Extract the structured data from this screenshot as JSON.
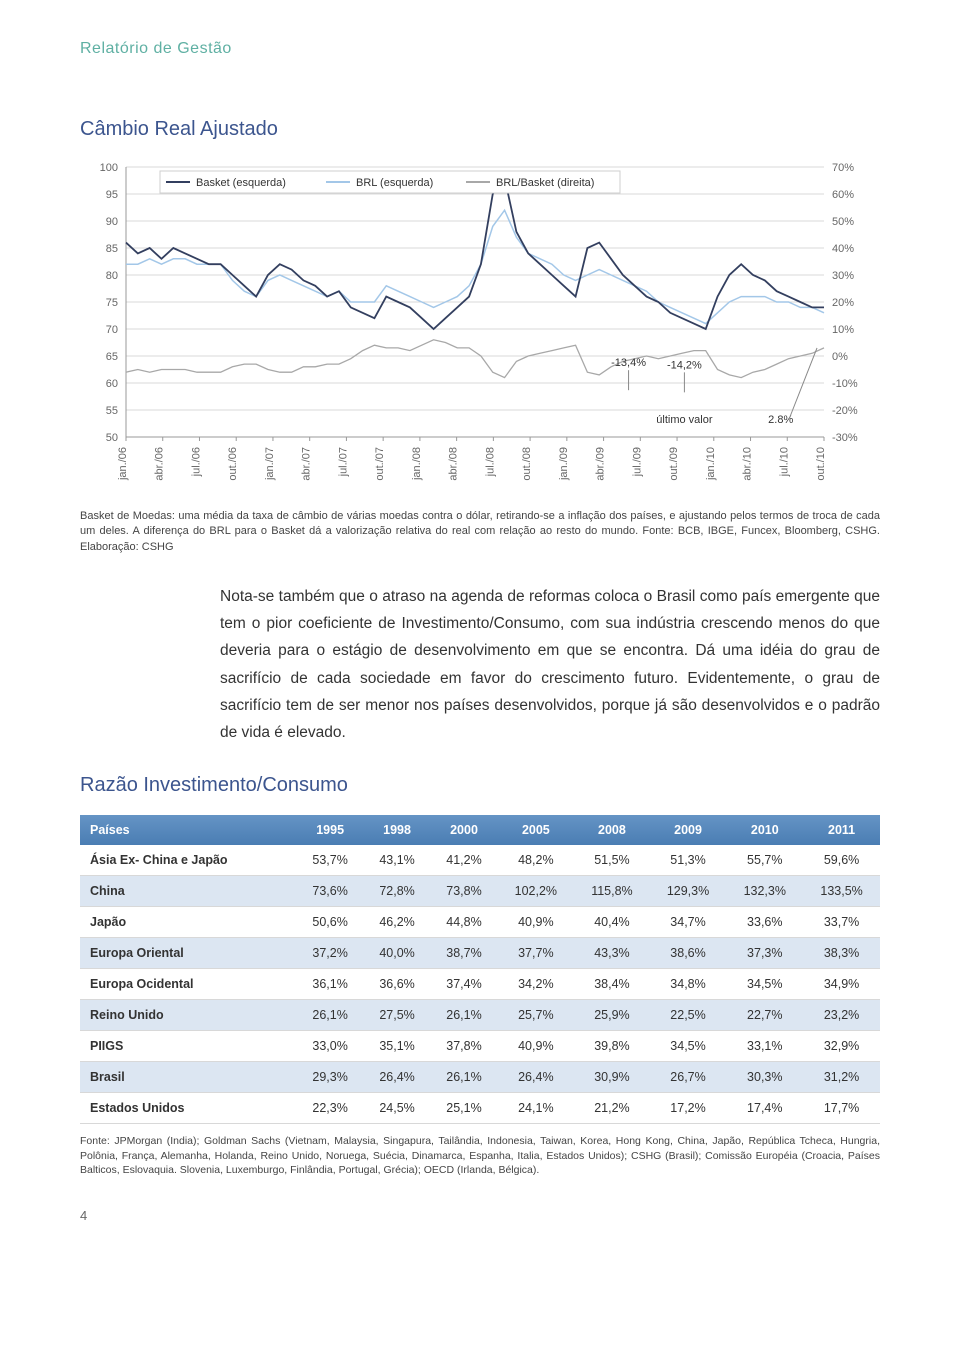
{
  "header": {
    "title": "Relatório de Gestão"
  },
  "chart": {
    "title": "Câmbio Real Ajustado",
    "legend": {
      "basket_left": "Basket (esquerda)",
      "brl_left": "BRL (esquerda)",
      "brl_basket_right": "BRL/Basket (direita)"
    },
    "colors": {
      "basket": "#333f5f",
      "brl": "#a3c7e8",
      "ratio": "#a8a8a8",
      "grid": "#d9d9d9",
      "axis_text": "#666666",
      "legend_border": "#cfcfcf",
      "callout_line": "#888888",
      "callout_text": "#333333"
    },
    "fontsize": {
      "axis": 11,
      "legend": 11,
      "callout": 11
    },
    "yleft": {
      "min": 50,
      "max": 100,
      "ticks": [
        50,
        55,
        60,
        65,
        70,
        75,
        80,
        85,
        90,
        95,
        100
      ]
    },
    "yright": {
      "min": -30,
      "max": 70,
      "ticks_labels": [
        "-30%",
        "-20%",
        "-10%",
        "0%",
        "10%",
        "20%",
        "30%",
        "40%",
        "50%",
        "60%",
        "70%"
      ]
    },
    "xlabels": [
      "jan./06",
      "abr./06",
      "jul./06",
      "out./06",
      "jan./07",
      "abr./07",
      "jul./07",
      "out./07",
      "jan./08",
      "abr./08",
      "jul./08",
      "out./08",
      "jan./09",
      "abr./09",
      "jul./09",
      "out./09",
      "jan./10",
      "abr./10",
      "jul./10",
      "out./10"
    ],
    "annotations": {
      "val1": "-13,4%",
      "val2": "-14,2%",
      "ultimo": "último valor",
      "ultimo_val": "2.8%"
    },
    "series": {
      "basket": [
        86,
        84,
        85,
        83,
        85,
        84,
        83,
        82,
        82,
        80,
        78,
        76,
        80,
        82,
        81,
        79,
        78,
        76,
        77,
        74,
        73,
        72,
        76,
        75,
        74,
        72,
        70,
        72,
        74,
        76,
        82,
        95,
        98,
        88,
        84,
        82,
        80,
        78,
        76,
        85,
        86,
        83,
        80,
        78,
        76,
        75,
        73,
        72,
        71,
        70,
        76,
        80,
        82,
        80,
        79,
        77,
        76,
        75,
        74,
        74
      ],
      "brl": [
        82,
        82,
        83,
        82,
        83,
        83,
        82,
        82,
        82,
        79,
        77,
        76,
        79,
        80,
        79,
        78,
        77,
        76,
        77,
        75,
        75,
        75,
        78,
        77,
        76,
        75,
        74,
        75,
        76,
        78,
        82,
        89,
        92,
        87,
        84,
        83,
        82,
        80,
        79,
        80,
        81,
        80,
        79,
        78,
        77,
        75,
        74,
        73,
        72,
        71,
        73,
        75,
        76,
        76,
        76,
        75,
        75,
        74,
        74,
        73
      ],
      "ratio": [
        -6,
        -5,
        -6,
        -5,
        -5,
        -5,
        -6,
        -6,
        -6,
        -4,
        -3,
        -3,
        -5,
        -6,
        -6,
        -4,
        -4,
        -3,
        -3,
        -1,
        2,
        4,
        3,
        3,
        2,
        4,
        6,
        5,
        3,
        3,
        0,
        -6,
        -8,
        -2,
        0,
        1,
        2,
        3,
        4,
        -6,
        -7,
        -4,
        -2,
        -1,
        0,
        -1,
        0,
        1,
        2,
        2,
        -5,
        -7,
        -8,
        -6,
        -5,
        -3,
        -1,
        0,
        1,
        3
      ]
    },
    "caption": "Basket de Moedas: uma média da taxa de câmbio de várias moedas contra o dólar, retirando-se a inflação dos países, e ajustando pelos termos de troca de cada um deles. A diferença do BRL para o Basket dá a valorização relativa do real com relação ao resto do mundo. Fonte: BCB, IBGE, Funcex, Bloomberg, CSHG. Elaboração: CSHG"
  },
  "body": "Nota-se também que o atraso na agenda de reformas coloca o Brasil como país emergente que tem o pior coeficiente de Investimento/Consumo, com sua indústria crescendo menos do que deveria para o estágio de desenvolvimento em que se encontra. Dá uma idéia do grau de sacrifício de cada sociedade em favor do crescimento futuro. Evidentemente, o grau de sacrifício tem de ser menor nos países desenvolvidos, porque já são desenvolvidos e o padrão de vida é elevado.",
  "table": {
    "title": "Razão Investimento/Consumo",
    "columns": [
      "Países",
      "1995",
      "1998",
      "2000",
      "2005",
      "2008",
      "2009",
      "2010",
      "2011"
    ],
    "rows": [
      [
        "Ásia Ex- China e Japão",
        "53,7%",
        "43,1%",
        "41,2%",
        "48,2%",
        "51,5%",
        "51,3%",
        "55,7%",
        "59,6%"
      ],
      [
        "China",
        "73,6%",
        "72,8%",
        "73,8%",
        "102,2%",
        "115,8%",
        "129,3%",
        "132,3%",
        "133,5%"
      ],
      [
        "Japão",
        "50,6%",
        "46,2%",
        "44,8%",
        "40,9%",
        "40,4%",
        "34,7%",
        "33,6%",
        "33,7%"
      ],
      [
        "Europa Oriental",
        "37,2%",
        "40,0%",
        "38,7%",
        "37,7%",
        "43,3%",
        "38,6%",
        "37,3%",
        "38,3%"
      ],
      [
        "Europa Ocidental",
        "36,1%",
        "36,6%",
        "37,4%",
        "34,2%",
        "38,4%",
        "34,8%",
        "34,5%",
        "34,9%"
      ],
      [
        "Reino Unido",
        "26,1%",
        "27,5%",
        "26,1%",
        "25,7%",
        "25,9%",
        "22,5%",
        "22,7%",
        "23,2%"
      ],
      [
        "PIIGS",
        "33,0%",
        "35,1%",
        "37,8%",
        "40,9%",
        "39,8%",
        "34,5%",
        "33,1%",
        "32,9%"
      ],
      [
        "Brasil",
        "29,3%",
        "26,4%",
        "26,1%",
        "26,4%",
        "30,9%",
        "26,7%",
        "30,3%",
        "31,2%"
      ],
      [
        "Estados Unidos",
        "22,3%",
        "24,5%",
        "25,1%",
        "24,1%",
        "21,2%",
        "17,2%",
        "17,4%",
        "17,7%"
      ]
    ],
    "footnote": "Fonte: JPMorgan (India); Goldman Sachs (Vietnam, Malaysia, Singapura, Tailândia, Indonesia, Taiwan, Korea, Hong Kong, China, Japão, República Tcheca, Hungria, Polônia, França, Alemanha, Holanda, Reino Unido, Noruega, Suécia, Dinamarca, Espanha, Italia, Estados Unidos); CSHG (Brasil); Comissão Européia (Croacia, Países Balticos, Eslovaquia. Slovenia, Luxemburgo, Finlândia, Portugal, Grécia); OECD (Irlanda, Bélgica)."
  },
  "pagenum": "4"
}
